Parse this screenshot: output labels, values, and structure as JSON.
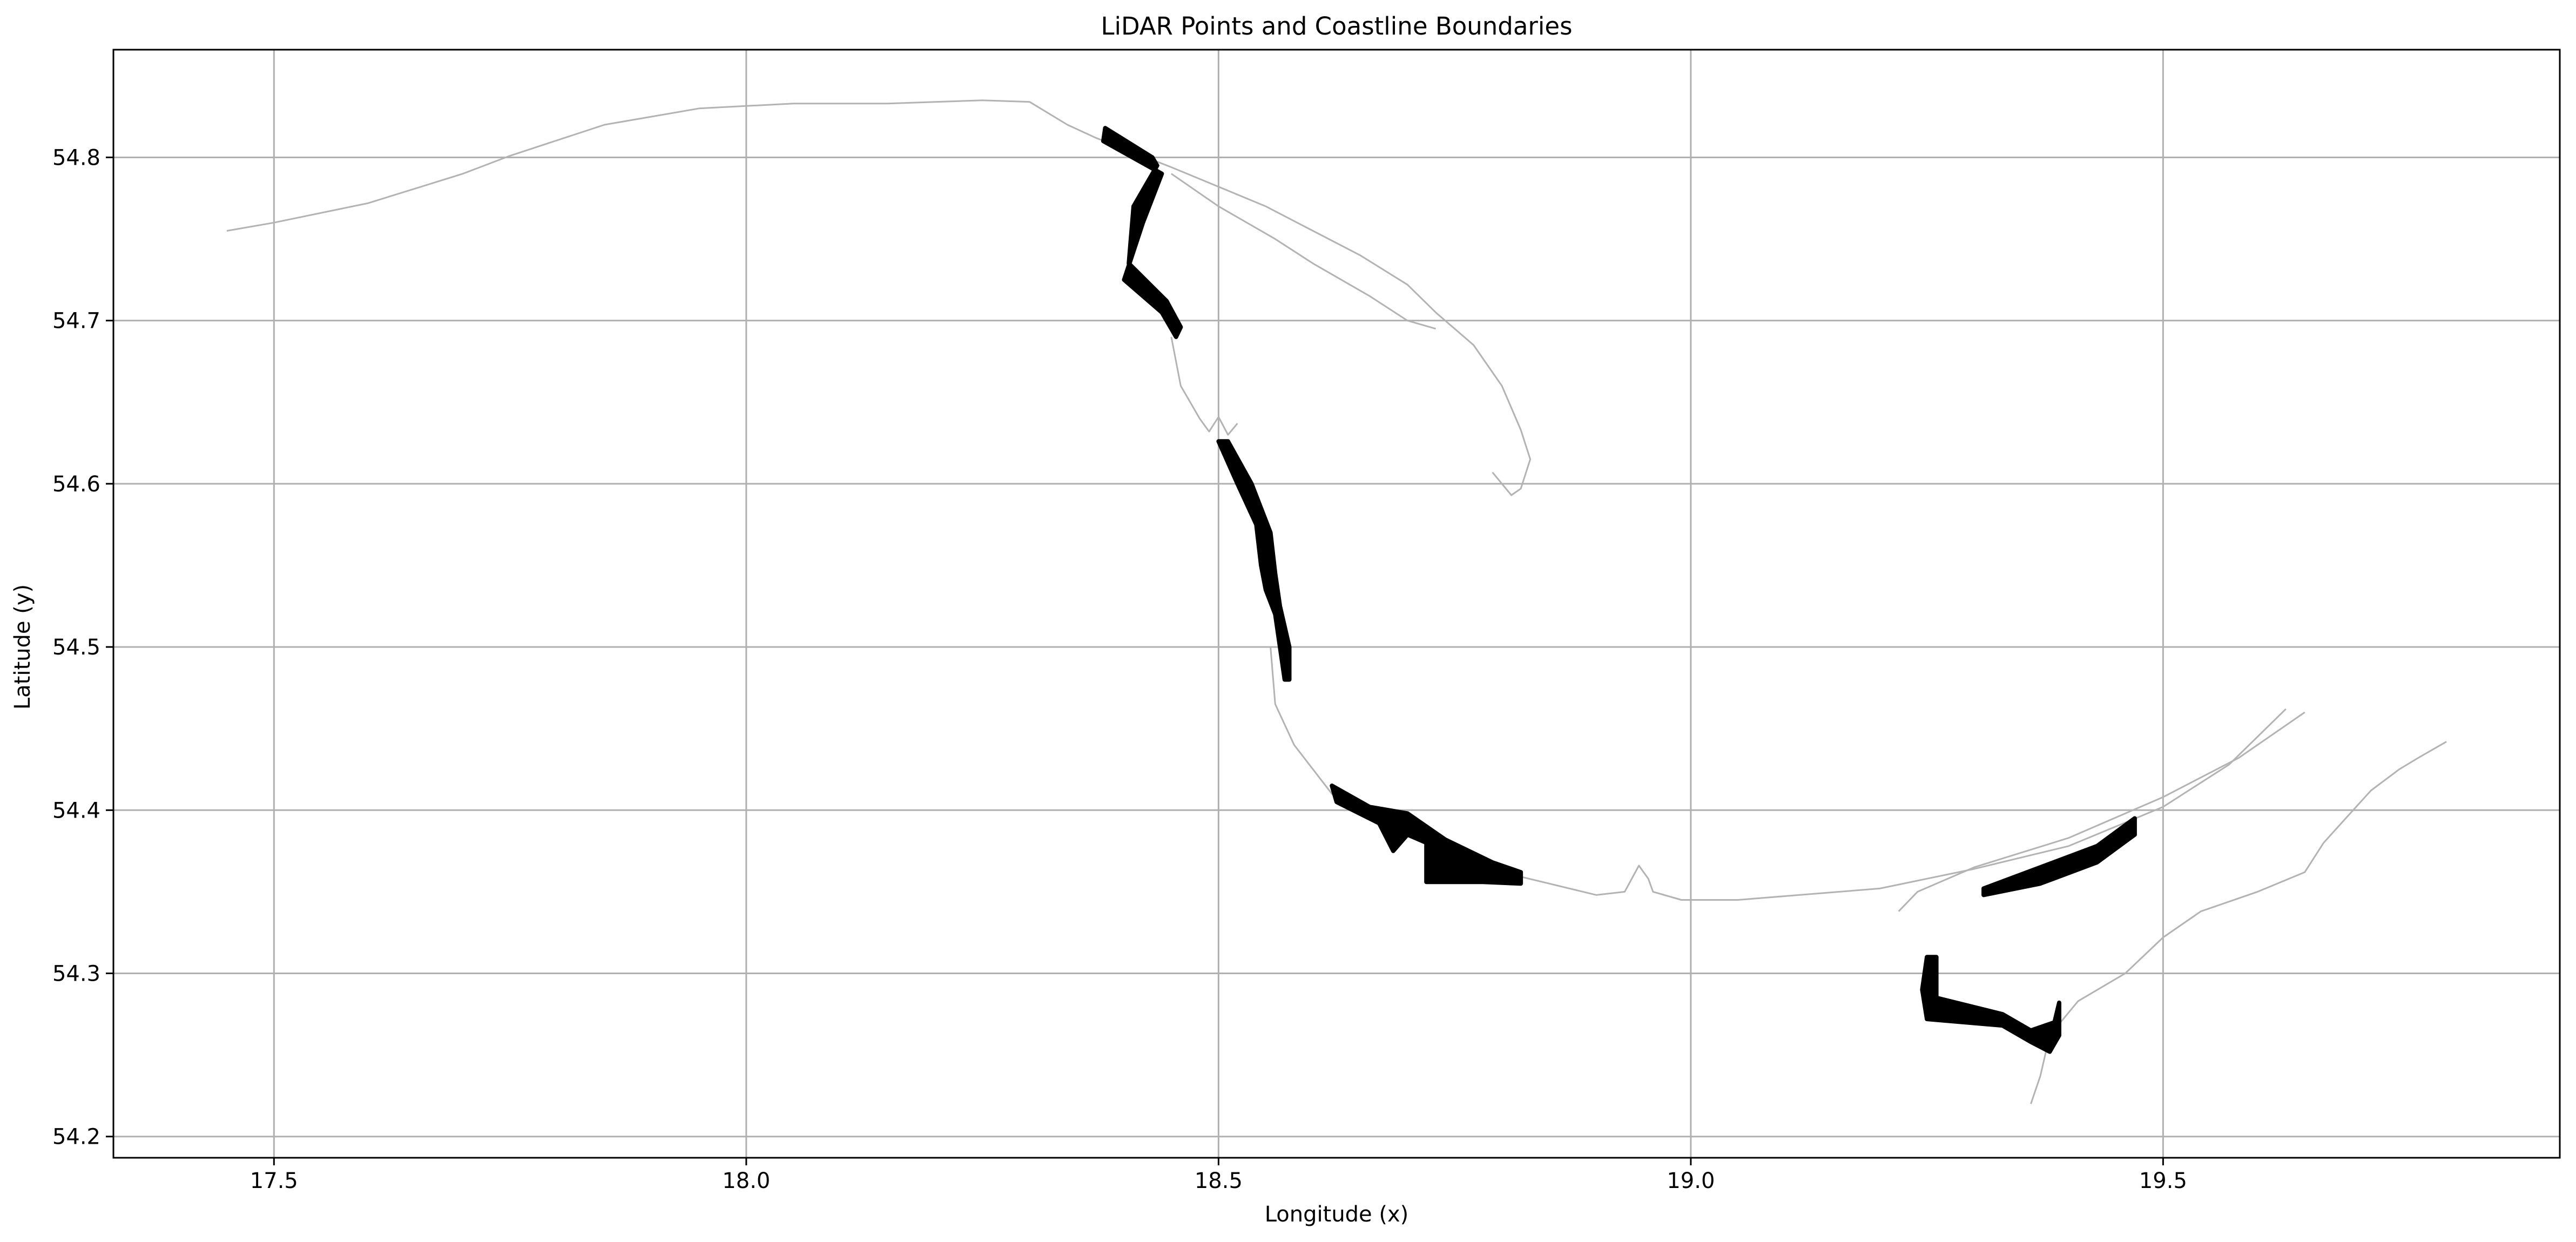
{
  "chart_data": {
    "type": "line",
    "title": "LiDAR Points and Coastline Boundaries",
    "xlabel": "Longitude (x)",
    "ylabel": "Latitude (y)",
    "xlim": [
      17.33,
      19.92
    ],
    "ylim": [
      54.187,
      54.866
    ],
    "grid": true,
    "x_ticks": [
      17.5,
      18.0,
      18.5,
      19.0,
      19.5
    ],
    "x_tick_labels": [
      "17.5",
      "18.0",
      "18.5",
      "19.0",
      "19.5"
    ],
    "y_ticks": [
      54.2,
      54.3,
      54.4,
      54.5,
      54.6,
      54.7,
      54.8
    ],
    "y_tick_labels": [
      "54.2",
      "54.3",
      "54.4",
      "54.5",
      "54.6",
      "54.7",
      "54.8"
    ],
    "colors": {
      "coastline": "#b3b3b3",
      "lidar": "#000000",
      "grid": "#b0b0b0"
    },
    "coastline": [
      [
        [
          17.45,
          54.755
        ],
        [
          17.5,
          54.76
        ],
        [
          17.6,
          54.772
        ],
        [
          17.7,
          54.79
        ],
        [
          17.75,
          54.801
        ],
        [
          17.85,
          54.82
        ],
        [
          17.95,
          54.83
        ],
        [
          18.05,
          54.833
        ],
        [
          18.15,
          54.833
        ],
        [
          18.25,
          54.835
        ],
        [
          18.3,
          54.834
        ],
        [
          18.34,
          54.82
        ],
        [
          18.37,
          54.812
        ],
        [
          18.45,
          54.794
        ],
        [
          18.55,
          54.77
        ],
        [
          18.6,
          54.755
        ],
        [
          18.65,
          54.74
        ],
        [
          18.7,
          54.722
        ],
        [
          18.73,
          54.705
        ],
        [
          18.77,
          54.685
        ],
        [
          18.8,
          54.66
        ],
        [
          18.82,
          54.633
        ],
        [
          18.83,
          54.615
        ],
        [
          18.82,
          54.597
        ],
        [
          18.81,
          54.593
        ],
        [
          18.79,
          54.607
        ]
      ],
      [
        [
          18.45,
          54.79
        ],
        [
          18.5,
          54.77
        ],
        [
          18.56,
          54.75
        ],
        [
          18.6,
          54.735
        ],
        [
          18.66,
          54.715
        ],
        [
          18.7,
          54.7
        ],
        [
          18.73,
          54.695
        ]
      ],
      [
        [
          18.45,
          54.69
        ],
        [
          18.46,
          54.66
        ],
        [
          18.48,
          54.64
        ],
        [
          18.49,
          54.632
        ],
        [
          18.5,
          54.641
        ],
        [
          18.51,
          54.63
        ],
        [
          18.52,
          54.637
        ]
      ],
      [
        [
          18.555,
          54.5
        ],
        [
          18.56,
          54.465
        ],
        [
          18.58,
          54.44
        ],
        [
          18.62,
          54.41
        ],
        [
          18.7,
          54.385
        ],
        [
          18.8,
          54.362
        ],
        [
          18.9,
          54.348
        ],
        [
          18.93,
          54.35
        ],
        [
          18.945,
          54.366
        ],
        [
          18.955,
          54.358
        ],
        [
          18.96,
          54.35
        ],
        [
          18.99,
          54.345
        ],
        [
          19.05,
          54.345
        ],
        [
          19.2,
          54.352
        ],
        [
          19.3,
          54.364
        ],
        [
          19.4,
          54.378
        ],
        [
          19.5,
          54.402
        ],
        [
          19.57,
          54.428
        ],
        [
          19.63,
          54.462
        ]
      ],
      [
        [
          19.22,
          54.338
        ],
        [
          19.24,
          54.35
        ],
        [
          19.3,
          54.365
        ],
        [
          19.4,
          54.383
        ],
        [
          19.5,
          54.408
        ],
        [
          19.58,
          54.432
        ],
        [
          19.65,
          54.46
        ]
      ],
      [
        [
          19.36,
          54.22
        ],
        [
          19.37,
          54.237
        ],
        [
          19.38,
          54.262
        ],
        [
          19.41,
          54.283
        ],
        [
          19.46,
          54.3
        ],
        [
          19.5,
          54.322
        ],
        [
          19.54,
          54.338
        ],
        [
          19.6,
          54.35
        ],
        [
          19.65,
          54.362
        ],
        [
          19.67,
          54.38
        ],
        [
          19.72,
          54.412
        ],
        [
          19.75,
          54.425
        ],
        [
          19.77,
          54.432
        ],
        [
          19.8,
          54.442
        ]
      ]
    ],
    "lidar": [
      [
        [
          18.378,
          54.81
        ],
        [
          18.44,
          54.79
        ],
        [
          18.42,
          54.76
        ],
        [
          18.4,
          54.725
        ],
        [
          18.44,
          54.705
        ],
        [
          18.455,
          54.69
        ],
        [
          18.46,
          54.696
        ],
        [
          18.445,
          54.712
        ],
        [
          18.405,
          54.735
        ],
        [
          18.41,
          54.77
        ],
        [
          18.435,
          54.795
        ],
        [
          18.43,
          54.8
        ],
        [
          18.38,
          54.818
        ]
      ],
      [
        [
          18.5,
          54.626
        ],
        [
          18.52,
          54.6
        ],
        [
          18.54,
          54.575
        ],
        [
          18.545,
          54.55
        ],
        [
          18.55,
          54.535
        ],
        [
          18.56,
          54.52
        ],
        [
          18.565,
          54.5
        ],
        [
          18.57,
          54.48
        ],
        [
          18.575,
          54.48
        ],
        [
          18.575,
          54.5
        ],
        [
          18.565,
          54.525
        ],
        [
          18.56,
          54.545
        ],
        [
          18.555,
          54.57
        ],
        [
          18.535,
          54.6
        ],
        [
          18.51,
          54.626
        ]
      ],
      [
        [
          18.62,
          54.415
        ],
        [
          18.66,
          54.402
        ],
        [
          18.7,
          54.398
        ],
        [
          18.74,
          54.382
        ],
        [
          18.79,
          54.368
        ],
        [
          18.82,
          54.362
        ],
        [
          18.82,
          54.355
        ],
        [
          18.78,
          54.356
        ],
        [
          18.72,
          54.356
        ],
        [
          18.72,
          54.38
        ],
        [
          18.7,
          54.385
        ],
        [
          18.685,
          54.375
        ],
        [
          18.67,
          54.392
        ],
        [
          18.625,
          54.405
        ]
      ],
      [
        [
          19.31,
          54.352
        ],
        [
          19.37,
          54.365
        ],
        [
          19.43,
          54.378
        ],
        [
          19.47,
          54.395
        ],
        [
          19.47,
          54.385
        ],
        [
          19.43,
          54.368
        ],
        [
          19.37,
          54.355
        ],
        [
          19.31,
          54.348
        ]
      ],
      [
        [
          19.25,
          54.31
        ],
        [
          19.245,
          54.29
        ],
        [
          19.25,
          54.272
        ],
        [
          19.33,
          54.268
        ],
        [
          19.36,
          54.258
        ],
        [
          19.38,
          54.252
        ],
        [
          19.39,
          54.262
        ],
        [
          19.39,
          54.282
        ],
        [
          19.385,
          54.27
        ],
        [
          19.36,
          54.265
        ],
        [
          19.33,
          54.275
        ],
        [
          19.26,
          54.285
        ],
        [
          19.26,
          54.31
        ]
      ]
    ]
  }
}
